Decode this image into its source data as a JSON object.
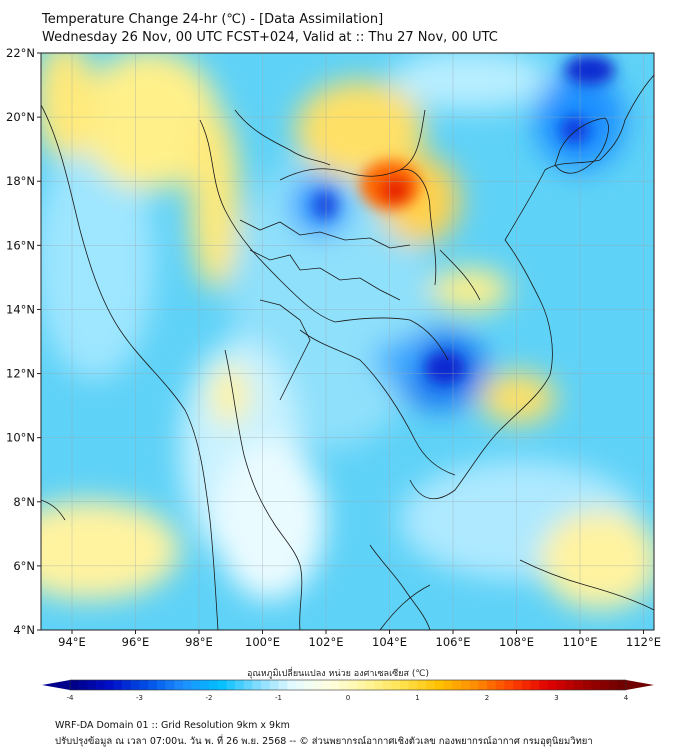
{
  "title_line1": "Temperature Change 24-hr (℃) - [Data Assimilation]",
  "title_line2": "Wednesday 26 Nov, 00 UTC FCST+024, Valid at :: Thu 27 Nov, 00 UTC",
  "lat_labels": [
    "22°N",
    "20°N",
    "18°N",
    "16°N",
    "14°N",
    "12°N",
    "10°N",
    "8°N",
    "6°N",
    "4°N"
  ],
  "lon_labels": [
    "94°E",
    "96°E",
    "98°E",
    "100°E",
    "102°E",
    "104°E",
    "106°E",
    "108°E",
    "110°E",
    "112°E"
  ],
  "colorbar": {
    "title": "อุณหภูมิเปลี่ยนแปลง หน่วย องศาเซลเซียส (℃)",
    "ticks": [
      "-4",
      "-3",
      "-2",
      "-1",
      "0",
      "1",
      "2",
      "3",
      "4"
    ],
    "min": -4,
    "max": 4,
    "colors": [
      "#00008b",
      "#0010c8",
      "#0050e6",
      "#1e90ff",
      "#00bfff",
      "#7fdcff",
      "#e6faff",
      "#ffffe0",
      "#fff59d",
      "#ffe24d",
      "#ffc000",
      "#ff8c00",
      "#ff4000",
      "#e00000",
      "#a00000",
      "#700000"
    ]
  },
  "footer_line1": "WRF-DA Domain 01 :: Grid Resolution 9km x 9km",
  "footer_line2": "ปรับปรุงข้อมูล ณ เวลา 07:00น. วัน พ. ที่ 26 พ.ย. 2568 -- © ส่วนพยากรณ์อากาศเชิงตัวเลข กองพยากรณ์อากาศ กรมอุตุนิยมวิทยา"
}
